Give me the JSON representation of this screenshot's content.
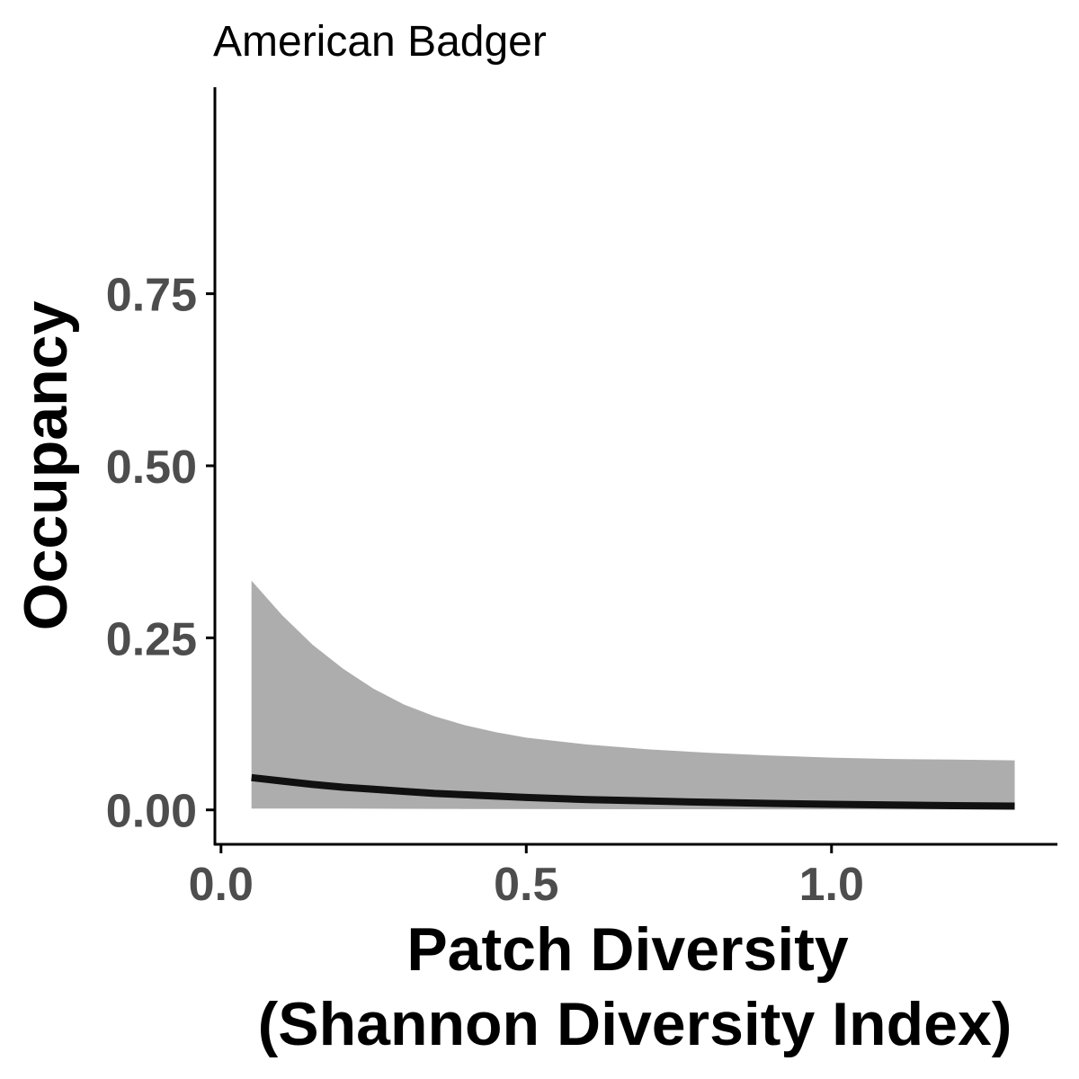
{
  "chart_data": {
    "type": "line",
    "title": "American Badger",
    "xlabel_lines": [
      "Patch Diversity",
      "(Shannon Diversity Index)"
    ],
    "ylabel": "Occupancy",
    "xlim": [
      -0.01,
      1.37
    ],
    "ylim": [
      -0.05,
      1.05
    ],
    "x_ticks": [
      0.0,
      0.5,
      1.0
    ],
    "x_tick_labels": [
      "0.0",
      "0.5",
      "1.0"
    ],
    "y_ticks": [
      0.0,
      0.25,
      0.5,
      0.75
    ],
    "y_tick_labels": [
      "0.00",
      "0.25",
      "0.50",
      "0.75"
    ],
    "grid": false,
    "legend": "none",
    "series": [
      {
        "x": [
          0.05,
          0.1,
          0.15,
          0.2,
          0.25,
          0.3,
          0.35,
          0.4,
          0.45,
          0.5,
          0.6,
          0.7,
          0.8,
          0.9,
          1.0,
          1.1,
          1.2,
          1.3
        ],
        "y": [
          0.047,
          0.042,
          0.037,
          0.033,
          0.03,
          0.027,
          0.024,
          0.022,
          0.02,
          0.018,
          0.015,
          0.013,
          0.011,
          0.0095,
          0.0082,
          0.0071,
          0.0062,
          0.0055
        ],
        "lower": [
          0.002,
          0.002,
          0.002,
          0.0018,
          0.0017,
          0.0016,
          0.0015,
          0.0014,
          0.0013,
          0.0012,
          0.0011,
          0.001,
          0.0009,
          0.0008,
          0.0008,
          0.0007,
          0.0007,
          0.0006
        ],
        "upper": [
          0.333,
          0.283,
          0.24,
          0.205,
          0.176,
          0.153,
          0.136,
          0.123,
          0.113,
          0.105,
          0.095,
          0.088,
          0.083,
          0.079,
          0.076,
          0.074,
          0.073,
          0.072
        ]
      }
    ],
    "colors": {
      "line": "#111111",
      "ribbon": "#adadad",
      "axis": "#000000",
      "tick_text": "#4d4d4d"
    }
  }
}
